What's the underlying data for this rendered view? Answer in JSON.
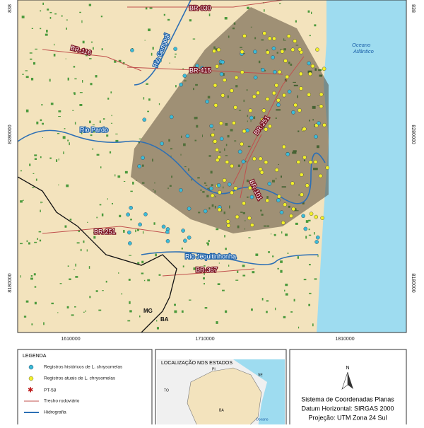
{
  "map": {
    "coords": {
      "bottom": [
        "1610000",
        "1710000",
        "1810000"
      ],
      "left": [
        "838",
        "8280000",
        "8180000"
      ],
      "right": [
        "838",
        "8280000",
        "8180000"
      ]
    },
    "labels": [
      "BR-030",
      "BR-116",
      "Rio Gongogi",
      "BR-415",
      "Oceano",
      "Atlântico",
      "BR-251",
      "Rio Pardo",
      "BR-101",
      "BR-251",
      "Rio Jequitinhonha",
      "BR-367",
      "MG",
      "BA"
    ]
  },
  "legend": {
    "title": "LEGENDA",
    "items": [
      "Registros históricos de L. chrysomelas",
      "Registros atuais de L. chrysomelas",
      "PT-58",
      "Trecho rodoviário",
      "Hidrografia"
    ]
  },
  "inset": {
    "title": "LOCALIZAÇÃO NOS ESTADOS",
    "labels": [
      "PI",
      "SE",
      "TO",
      "BA",
      "Oceano"
    ]
  },
  "info": {
    "north": "N",
    "lines": [
      "Sistema de Coordenadas Planas",
      "Datum Horizontal: SIRGAS 2000",
      "Projeção: UTM Zona 24 Sul"
    ]
  }
}
